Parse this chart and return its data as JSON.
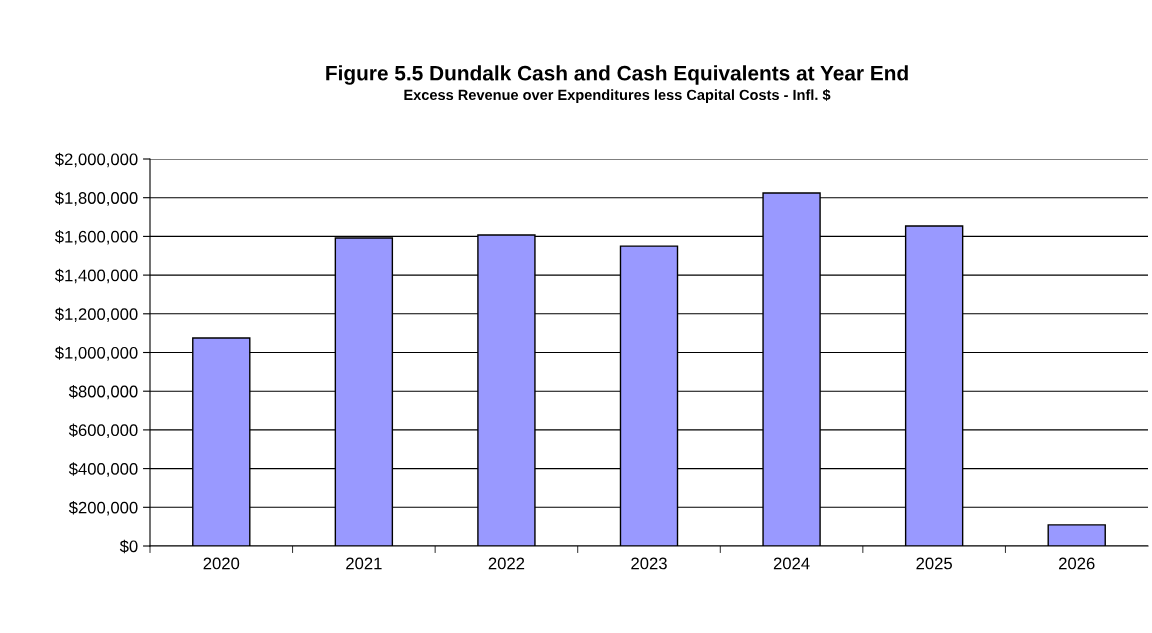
{
  "chart_data": {
    "type": "bar",
    "title": "Figure 5.5 Dundalk Cash and Cash Equivalents at Year End",
    "subtitle": "Excess Revenue over Expenditures less Capital Costs - Infl. $",
    "categories": [
      "2020",
      "2021",
      "2022",
      "2023",
      "2024",
      "2025",
      "2026"
    ],
    "values": [
      1075000,
      1592000,
      1607000,
      1550000,
      1824000,
      1654000,
      109000
    ],
    "color": "#9999ff",
    "ylim": [
      0,
      2000000
    ],
    "yticks": [
      {
        "value": 0,
        "label": "$0"
      },
      {
        "value": 200000,
        "label": "$200,000"
      },
      {
        "value": 400000,
        "label": "$400,000"
      },
      {
        "value": 600000,
        "label": "$600,000"
      },
      {
        "value": 800000,
        "label": "$800,000"
      },
      {
        "value": 1000000,
        "label": "$1,000,000"
      },
      {
        "value": 1200000,
        "label": "$1,200,000"
      },
      {
        "value": 1400000,
        "label": "$1,400,000"
      },
      {
        "value": 1600000,
        "label": "$1,600,000"
      },
      {
        "value": 1800000,
        "label": "$1,800,000"
      },
      {
        "value": 2000000,
        "label": "$2,000,000"
      }
    ],
    "grid": "y"
  }
}
